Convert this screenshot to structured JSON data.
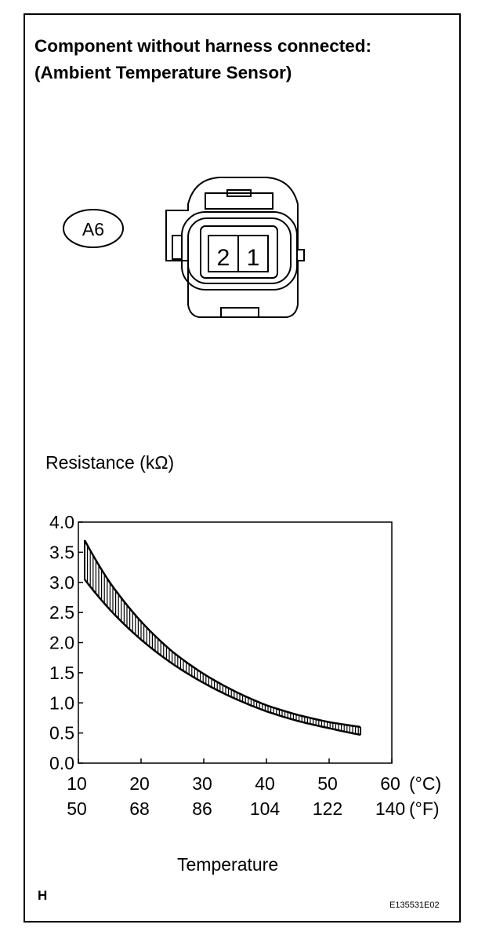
{
  "header": {
    "line1": "Component without harness connected:",
    "line2": "(Ambient Temperature Sensor)"
  },
  "connector": {
    "id": "A6",
    "pins": [
      "2",
      "1"
    ]
  },
  "chart_data": {
    "type": "area",
    "ylabel": "Resistance (kΩ)",
    "xlabel": "Temperature",
    "xlim": [
      10,
      60
    ],
    "ylim": [
      0,
      4
    ],
    "x_ticks_c": [
      "10",
      "20",
      "30",
      "40",
      "50",
      "60"
    ],
    "x_ticks_f": [
      "50",
      "68",
      "86",
      "104",
      "122",
      "140"
    ],
    "x_unit_c": "(°C)",
    "x_unit_f": "(°F)",
    "y_ticks": [
      "0.0",
      "0.5",
      "1.0",
      "1.5",
      "2.0",
      "2.5",
      "3.0",
      "3.5",
      "4.0"
    ],
    "series": [
      {
        "x": [
          11,
          15,
          20,
          25,
          30,
          35,
          40,
          45,
          50,
          55
        ],
        "values": [
          3.7,
          3.0,
          2.35,
          1.85,
          1.48,
          1.19,
          0.96,
          0.8,
          0.68,
          0.6
        ]
      },
      {
        "x": [
          11,
          15,
          20,
          25,
          30,
          35,
          40,
          45,
          50,
          55
        ],
        "values": [
          3.05,
          2.55,
          2.05,
          1.65,
          1.33,
          1.07,
          0.86,
          0.7,
          0.58,
          0.47
        ]
      }
    ]
  },
  "footer": {
    "mark": "H",
    "code": "E135531E02"
  }
}
